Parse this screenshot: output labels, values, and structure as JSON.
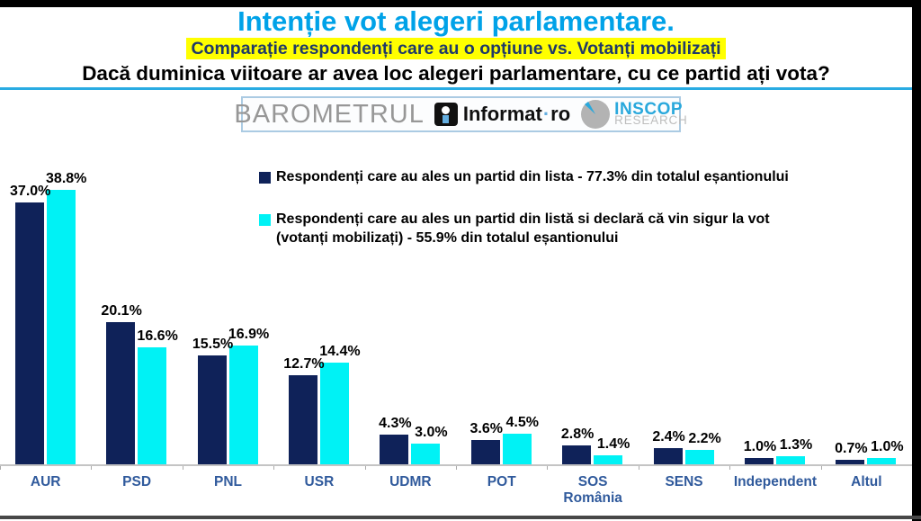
{
  "header": {
    "title": "Intenție vot alegeri parlamentare.",
    "subtitle": "Comparație respondenți care au o opțiune vs. Votanți mobilizați",
    "question": "Dacă duminica viitoare ar avea loc alegeri parlamentare, cu ce partid ați vota?"
  },
  "branding": {
    "barometrul": "BAROMETRUL",
    "informat": "Informat",
    "informat_dot": "·",
    "informat_suffix": "ro",
    "inscop": "INSCOP",
    "research": "RESEARCH"
  },
  "legend": [
    {
      "color": "#0F2259",
      "lines": [
        "Respondenți care au ales un partid din lista - 77.3% din totalul eșantionului"
      ]
    },
    {
      "color": "#00F2F5",
      "lines": [
        "Respondenți care au ales un partid din listă si declară că vin sigur la vot",
        "(votanți mobilizați) - 55.9% din totalul eșantionului"
      ]
    }
  ],
  "chart_data": {
    "type": "bar",
    "categories": [
      "AUR",
      "PSD",
      "PNL",
      "USR",
      "UDMR",
      "POT",
      "SOS România",
      "SENS",
      "Independent",
      "Altul"
    ],
    "series": [
      {
        "name": "Respondenți care au ales un partid din lista (77.3% din totalul eșantionului)",
        "color": "#0F2259",
        "values": [
          37.0,
          20.1,
          15.5,
          12.7,
          4.3,
          3.6,
          2.8,
          2.4,
          1.0,
          0.7
        ],
        "labels": [
          "37.0%",
          "20.1%",
          "15.5%",
          "12.7%",
          "4.3%",
          "3.6%",
          "2.8%",
          "2.4%",
          "1.0%",
          "0.7%"
        ]
      },
      {
        "name": "Votanți mobilizați (55.9% din totalul eșantionului)",
        "color": "#00F2F5",
        "values": [
          38.8,
          16.6,
          16.9,
          14.4,
          3.0,
          4.5,
          1.4,
          2.2,
          1.3,
          1.0
        ],
        "labels": [
          "38.8%",
          "16.6%",
          "16.9%",
          "14.4%",
          "3.0%",
          "4.5%",
          "1.4%",
          "2.2%",
          "1.3%",
          "1.0%"
        ]
      }
    ],
    "value_suffix": "%",
    "ylim": [
      0,
      40
    ],
    "grid": false,
    "xlabel": "",
    "ylabel": "",
    "legend_position": "top",
    "title": "Intenție vot alegeri parlamentare."
  },
  "colors": {
    "title_blue": "#00A2E8",
    "subtitle_text": "#1F3968",
    "subtitle_highlight": "#FFFF00",
    "divider_blue": "#29ABE2",
    "category_label_blue": "#305A9C",
    "navy_bar": "#0F2259",
    "cyan_bar": "#00F2F5"
  }
}
